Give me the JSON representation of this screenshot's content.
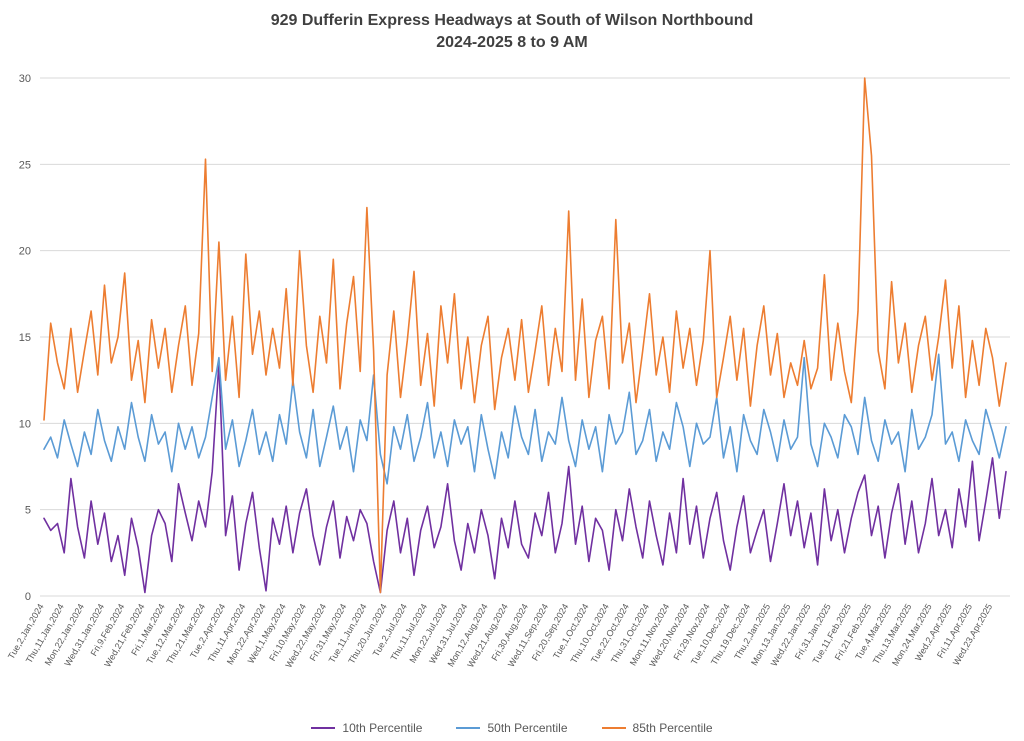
{
  "title_line1": "929 Dufferin Express Headways at South of Wilson Northbound",
  "title_line2": "2024-2025 8 to 9 AM",
  "chart_data": {
    "type": "line",
    "title": "929 Dufferin Express Headways at South of Wilson Northbound 2024-2025 8 to 9 AM",
    "xlabel": "",
    "ylabel": "",
    "ylim": [
      0,
      30
    ],
    "yticks": [
      0,
      5,
      10,
      15,
      20,
      25,
      30
    ],
    "grid": "horizontal",
    "legend_position": "bottom",
    "x_count": 144,
    "x_labels_every": 3,
    "x_ticks": [
      "Tue,2,Jan,2024",
      "Thu,11,Jan,2024",
      "Mon,22,Jan,2024",
      "Wed,31,Jan,2024",
      "Fri,9,Feb,2024",
      "Wed,21,Feb,2024",
      "Fri,1,Mar,2024",
      "Tue,12,Mar,2024",
      "Thu,21,Mar,2024",
      "Tue,2,Apr,2024",
      "Thu,11,Apr,2024",
      "Mon,22,Apr,2024",
      "Wed,1,May,2024",
      "Fri,10,May,2024",
      "Wed,22,May,2024",
      "Fri,31,May,2024",
      "Tue,11,Jun,2024",
      "Thu,20,Jun,2024",
      "Tue,2,Jul,2024",
      "Thu,11,Jul,2024",
      "Mon,22,Jul,2024",
      "Wed,31,Jul,2024",
      "Mon,12,Aug,2024",
      "Wed,21,Aug,2024",
      "Fri,30,Aug,2024",
      "Wed,11,Sep,2024",
      "Fri,20,Sep,2024",
      "Tue,1,Oct,2024",
      "Thu,10,Oct,2024",
      "Tue,22,Oct,2024",
      "Thu,31,Oct,2024",
      "Mon,11,Nov,2024",
      "Wed,20,Nov,2024",
      "Fri,29,Nov,2024",
      "Tue,10,Dec,2024",
      "Thu,19,Dec,2024",
      "Thu,2,Jan,2025",
      "Mon,13,Jan,2025",
      "Wed,22,Jan,2025",
      "Fri,31,Jan,2025",
      "Tue,11,Feb,2025",
      "Fri,21,Feb,2025",
      "Tue,4,Mar,2025",
      "Thu,13,Mar,2025",
      "Mon,24,Mar,2025",
      "Wed,2,Apr,2025",
      "Fri,11,Apr,2025",
      "Wed,23,Apr,2025"
    ],
    "series": [
      {
        "name": "10th Percentile",
        "color": "#7030A0",
        "values": [
          4.5,
          3.8,
          4.2,
          2.5,
          6.8,
          4.0,
          2.2,
          5.5,
          3.0,
          4.8,
          2.0,
          3.5,
          1.2,
          4.5,
          2.8,
          0.2,
          3.5,
          5.0,
          4.2,
          2.0,
          6.5,
          4.8,
          3.2,
          5.5,
          4.0,
          7.2,
          13.5,
          3.5,
          5.8,
          1.5,
          4.2,
          6.0,
          2.8,
          0.3,
          4.5,
          3.0,
          5.2,
          2.5,
          4.8,
          6.2,
          3.5,
          1.8,
          4.0,
          5.5,
          2.2,
          4.6,
          3.2,
          5.0,
          4.2,
          2.0,
          0.2,
          3.8,
          5.5,
          2.5,
          4.5,
          1.2,
          3.8,
          5.2,
          2.8,
          4.0,
          6.5,
          3.2,
          1.5,
          4.2,
          2.5,
          5.0,
          3.5,
          1.0,
          4.5,
          2.8,
          5.5,
          3.0,
          2.2,
          4.8,
          3.5,
          6.0,
          2.5,
          4.2,
          7.5,
          3.0,
          5.2,
          2.0,
          4.5,
          3.8,
          1.5,
          5.0,
          3.2,
          6.2,
          4.0,
          2.2,
          5.5,
          3.5,
          1.8,
          4.8,
          2.5,
          6.8,
          3.0,
          5.2,
          2.2,
          4.5,
          6.0,
          3.2,
          1.5,
          4.0,
          5.8,
          2.5,
          3.8,
          5.0,
          2.0,
          4.2,
          6.5,
          3.5,
          5.5,
          2.8,
          4.8,
          1.8,
          6.2,
          3.2,
          5.0,
          2.5,
          4.5,
          6.0,
          7.0,
          3.5,
          5.2,
          2.2,
          4.8,
          6.5,
          3.0,
          5.5,
          2.5,
          4.2,
          6.8,
          3.5,
          5.0,
          2.8,
          6.2,
          4.0,
          7.8,
          3.2,
          5.5,
          8.0,
          4.5,
          7.2
        ]
      },
      {
        "name": "50th Percentile",
        "color": "#5B9BD5",
        "values": [
          8.5,
          9.2,
          8.0,
          10.2,
          8.8,
          7.5,
          9.5,
          8.2,
          10.8,
          9.0,
          7.8,
          9.8,
          8.5,
          11.2,
          9.2,
          7.8,
          10.5,
          8.8,
          9.5,
          7.2,
          10.0,
          8.5,
          9.8,
          8.0,
          9.2,
          11.5,
          13.8,
          8.5,
          10.2,
          7.5,
          9.0,
          10.8,
          8.2,
          9.5,
          7.8,
          10.5,
          8.8,
          12.5,
          9.5,
          8.0,
          10.8,
          7.5,
          9.2,
          11.0,
          8.5,
          9.8,
          7.2,
          10.2,
          9.0,
          12.8,
          8.2,
          6.5,
          9.8,
          8.5,
          10.5,
          7.8,
          9.2,
          11.2,
          8.0,
          9.5,
          7.5,
          10.2,
          8.8,
          9.8,
          7.2,
          10.5,
          8.5,
          6.8,
          9.5,
          8.0,
          11.0,
          9.2,
          8.2,
          10.8,
          7.8,
          9.5,
          8.8,
          11.5,
          9.0,
          7.5,
          10.2,
          8.5,
          9.8,
          7.2,
          10.5,
          8.8,
          9.5,
          11.8,
          8.2,
          9.0,
          10.8,
          7.8,
          9.5,
          8.5,
          11.2,
          9.8,
          7.5,
          10.0,
          8.8,
          9.2,
          11.5,
          8.0,
          9.8,
          7.2,
          10.5,
          9.0,
          8.2,
          10.8,
          9.5,
          7.8,
          10.2,
          8.5,
          9.2,
          13.8,
          8.8,
          7.5,
          10.0,
          9.2,
          8.0,
          10.5,
          9.8,
          8.2,
          11.5,
          9.0,
          7.8,
          10.2,
          8.8,
          9.5,
          7.2,
          10.8,
          8.5,
          9.2,
          10.5,
          14.0,
          8.8,
          9.5,
          7.8,
          10.2,
          9.0,
          8.2,
          10.8,
          9.5,
          8.0,
          9.8
        ]
      },
      {
        "name": "85th Percentile",
        "color": "#ED7D31",
        "values": [
          10.2,
          15.8,
          13.5,
          12.0,
          15.5,
          11.8,
          14.2,
          16.5,
          12.8,
          18.0,
          13.5,
          15.0,
          18.7,
          12.5,
          14.8,
          11.2,
          16.0,
          13.2,
          15.5,
          11.8,
          14.5,
          16.8,
          12.2,
          15.2,
          25.3,
          13.0,
          20.5,
          12.5,
          16.2,
          11.5,
          19.8,
          14.0,
          16.5,
          12.8,
          15.5,
          13.2,
          17.8,
          12.2,
          20.0,
          14.5,
          11.8,
          16.2,
          13.5,
          19.5,
          12.0,
          15.8,
          18.5,
          13.0,
          22.5,
          14.2,
          0.2,
          12.8,
          16.5,
          11.5,
          14.8,
          18.8,
          12.2,
          15.2,
          11.0,
          16.8,
          13.5,
          17.5,
          12.0,
          15.0,
          11.2,
          14.5,
          16.2,
          10.8,
          13.8,
          15.5,
          12.5,
          16.0,
          11.8,
          14.2,
          16.8,
          12.2,
          15.5,
          13.0,
          22.3,
          12.5,
          17.2,
          11.5,
          14.8,
          16.2,
          12.0,
          21.8,
          13.5,
          15.8,
          11.2,
          14.2,
          17.5,
          12.8,
          15.0,
          11.8,
          16.5,
          13.2,
          15.5,
          12.2,
          14.8,
          20.0,
          11.5,
          13.8,
          16.2,
          12.5,
          15.5,
          11.0,
          14.5,
          16.8,
          12.8,
          15.2,
          11.5,
          13.5,
          12.2,
          14.8,
          12.0,
          13.2,
          18.6,
          12.5,
          15.8,
          13.0,
          11.2,
          16.5,
          30.0,
          25.5,
          14.2,
          12.0,
          18.2,
          13.5,
          15.8,
          11.8,
          14.5,
          16.2,
          12.5,
          15.0,
          18.3,
          13.2,
          16.8,
          11.5,
          14.8,
          12.2,
          15.5,
          13.8,
          11.0,
          13.5
        ]
      }
    ]
  },
  "legend": {
    "items": [
      "10th Percentile",
      "50th Percentile",
      "85th Percentile"
    ]
  },
  "colors": {
    "grid": "#D9D9D9",
    "axis_text": "#595959",
    "title_text": "#404040"
  }
}
